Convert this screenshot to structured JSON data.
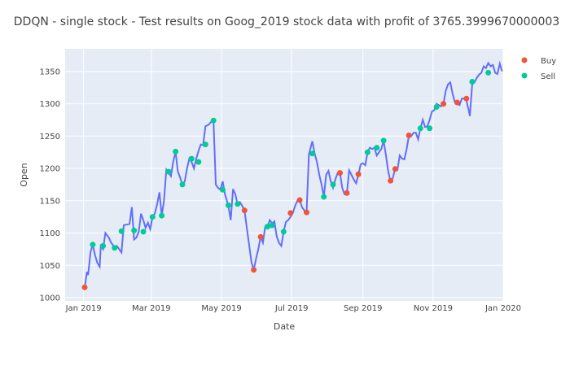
{
  "chart_data": {
    "type": "line",
    "title": "DDQN - single stock - Test results on Goog_2019 stock data with profit of 3765.3999670000003",
    "xlabel": "Date",
    "ylabel": "Open",
    "xlim": [
      "2018-12-16",
      "2020-01-01"
    ],
    "ylim": [
      995,
      1385
    ],
    "x_ticks": [
      {
        "date": "2019-01-01",
        "label": "Jan 2019"
      },
      {
        "date": "2019-03-01",
        "label": "Mar 2019"
      },
      {
        "date": "2019-05-01",
        "label": "May 2019"
      },
      {
        "date": "2019-07-01",
        "label": "Jul 2019"
      },
      {
        "date": "2019-09-01",
        "label": "Sep 2019"
      },
      {
        "date": "2019-11-01",
        "label": "Nov 2019"
      },
      {
        "date": "2020-01-01",
        "label": "Jan 2020"
      }
    ],
    "y_ticks": [
      1000,
      1050,
      1100,
      1150,
      1200,
      1250,
      1300,
      1350
    ],
    "grid": true,
    "legend_position": "top-right",
    "colors": {
      "line": "#636efa",
      "buy": "#ef553b",
      "sell": "#00cc96",
      "plot_bg": "#e5ecf6",
      "grid": "#ffffff"
    },
    "line_series": {
      "name": "",
      "points": [
        [
          "2019-01-02",
          1016
        ],
        [
          "2019-01-04",
          1040
        ],
        [
          "2019-01-05",
          1035
        ],
        [
          "2019-01-07",
          1070
        ],
        [
          "2019-01-09",
          1082
        ],
        [
          "2019-01-11",
          1066
        ],
        [
          "2019-01-13",
          1054
        ],
        [
          "2019-01-15",
          1048
        ],
        [
          "2019-01-16",
          1080
        ],
        [
          "2019-01-18",
          1075
        ],
        [
          "2019-01-20",
          1100
        ],
        [
          "2019-01-23",
          1093
        ],
        [
          "2019-01-25",
          1085
        ],
        [
          "2019-01-28",
          1078
        ],
        [
          "2019-01-30",
          1080
        ],
        [
          "2019-02-01",
          1075
        ],
        [
          "2019-02-03",
          1070
        ],
        [
          "2019-02-05",
          1112
        ],
        [
          "2019-02-07",
          1113
        ],
        [
          "2019-02-10",
          1114
        ],
        [
          "2019-02-12",
          1140
        ],
        [
          "2019-02-14",
          1090
        ],
        [
          "2019-02-16",
          1093
        ],
        [
          "2019-02-18",
          1102
        ],
        [
          "2019-02-20",
          1130
        ],
        [
          "2019-02-22",
          1120
        ],
        [
          "2019-02-24",
          1108
        ],
        [
          "2019-02-26",
          1116
        ],
        [
          "2019-02-28",
          1106
        ],
        [
          "2019-03-02",
          1125
        ],
        [
          "2019-03-04",
          1130
        ],
        [
          "2019-03-06",
          1145
        ],
        [
          "2019-03-08",
          1163
        ],
        [
          "2019-03-10",
          1127
        ],
        [
          "2019-03-12",
          1150
        ],
        [
          "2019-03-14",
          1198
        ],
        [
          "2019-03-16",
          1193
        ],
        [
          "2019-03-18",
          1188
        ],
        [
          "2019-03-20",
          1210
        ],
        [
          "2019-03-22",
          1226
        ],
        [
          "2019-03-24",
          1195
        ],
        [
          "2019-03-26",
          1186
        ],
        [
          "2019-03-28",
          1175
        ],
        [
          "2019-03-30",
          1180
        ],
        [
          "2019-04-01",
          1200
        ],
        [
          "2019-04-03",
          1215
        ],
        [
          "2019-04-05",
          1210
        ],
        [
          "2019-04-07",
          1200
        ],
        [
          "2019-04-09",
          1215
        ],
        [
          "2019-04-11",
          1227
        ],
        [
          "2019-04-13",
          1237
        ],
        [
          "2019-04-15",
          1236
        ],
        [
          "2019-04-17",
          1265
        ],
        [
          "2019-04-20",
          1268
        ],
        [
          "2019-04-22",
          1272
        ],
        [
          "2019-04-24",
          1274
        ],
        [
          "2019-04-26",
          1175
        ],
        [
          "2019-04-28",
          1170
        ],
        [
          "2019-04-30",
          1167
        ],
        [
          "2019-05-02",
          1180
        ],
        [
          "2019-05-04",
          1160
        ],
        [
          "2019-05-07",
          1142
        ],
        [
          "2019-05-09",
          1120
        ],
        [
          "2019-05-11",
          1168
        ],
        [
          "2019-05-13",
          1160
        ],
        [
          "2019-05-15",
          1144
        ],
        [
          "2019-05-17",
          1148
        ],
        [
          "2019-05-19",
          1142
        ],
        [
          "2019-05-21",
          1135
        ],
        [
          "2019-05-23",
          1108
        ],
        [
          "2019-05-25",
          1082
        ],
        [
          "2019-05-27",
          1055
        ],
        [
          "2019-05-29",
          1043
        ],
        [
          "2019-05-31",
          1060
        ],
        [
          "2019-06-02",
          1075
        ],
        [
          "2019-06-04",
          1094
        ],
        [
          "2019-06-06",
          1085
        ],
        [
          "2019-06-08",
          1110
        ],
        [
          "2019-06-10",
          1110
        ],
        [
          "2019-06-12",
          1120
        ],
        [
          "2019-06-14",
          1115
        ],
        [
          "2019-06-16",
          1118
        ],
        [
          "2019-06-18",
          1095
        ],
        [
          "2019-06-20",
          1085
        ],
        [
          "2019-06-22",
          1080
        ],
        [
          "2019-06-24",
          1102
        ],
        [
          "2019-06-26",
          1117
        ],
        [
          "2019-06-28",
          1120
        ],
        [
          "2019-06-30",
          1125
        ],
        [
          "2019-07-02",
          1131
        ],
        [
          "2019-07-04",
          1142
        ],
        [
          "2019-07-06",
          1150
        ],
        [
          "2019-07-08",
          1151
        ],
        [
          "2019-07-10",
          1140
        ],
        [
          "2019-07-12",
          1135
        ],
        [
          "2019-07-14",
          1132
        ],
        [
          "2019-07-16",
          1222
        ],
        [
          "2019-07-19",
          1242
        ],
        [
          "2019-07-21",
          1223
        ],
        [
          "2019-07-23",
          1210
        ],
        [
          "2019-07-25",
          1190
        ],
        [
          "2019-07-27",
          1175
        ],
        [
          "2019-07-29",
          1156
        ],
        [
          "2019-07-31",
          1190
        ],
        [
          "2019-08-02",
          1196
        ],
        [
          "2019-08-04",
          1180
        ],
        [
          "2019-08-06",
          1170
        ],
        [
          "2019-08-08",
          1183
        ],
        [
          "2019-08-10",
          1193
        ],
        [
          "2019-08-12",
          1193
        ],
        [
          "2019-08-14",
          1170
        ],
        [
          "2019-08-16",
          1160
        ],
        [
          "2019-08-18",
          1162
        ],
        [
          "2019-08-20",
          1197
        ],
        [
          "2019-08-22",
          1190
        ],
        [
          "2019-08-24",
          1183
        ],
        [
          "2019-08-26",
          1177
        ],
        [
          "2019-08-28",
          1190
        ],
        [
          "2019-08-30",
          1206
        ],
        [
          "2019-09-01",
          1208
        ],
        [
          "2019-09-03",
          1205
        ],
        [
          "2019-09-05",
          1225
        ],
        [
          "2019-09-07",
          1232
        ],
        [
          "2019-09-09",
          1230
        ],
        [
          "2019-09-11",
          1232
        ],
        [
          "2019-09-13",
          1220
        ],
        [
          "2019-09-15",
          1225
        ],
        [
          "2019-09-17",
          1230
        ],
        [
          "2019-09-19",
          1243
        ],
        [
          "2019-09-21",
          1220
        ],
        [
          "2019-09-23",
          1195
        ],
        [
          "2019-09-25",
          1180
        ],
        [
          "2019-09-27",
          1185
        ],
        [
          "2019-09-29",
          1200
        ],
        [
          "2019-10-01",
          1198
        ],
        [
          "2019-10-03",
          1220
        ],
        [
          "2019-10-05",
          1215
        ],
        [
          "2019-10-07",
          1214
        ],
        [
          "2019-10-09",
          1230
        ],
        [
          "2019-10-11",
          1251
        ],
        [
          "2019-10-13",
          1250
        ],
        [
          "2019-10-15",
          1255
        ],
        [
          "2019-10-17",
          1255
        ],
        [
          "2019-10-19",
          1245
        ],
        [
          "2019-10-21",
          1262
        ],
        [
          "2019-10-23",
          1275
        ],
        [
          "2019-10-25",
          1264
        ],
        [
          "2019-10-27",
          1265
        ],
        [
          "2019-10-29",
          1275
        ],
        [
          "2019-10-31",
          1288
        ],
        [
          "2019-11-02",
          1290
        ],
        [
          "2019-11-04",
          1300
        ],
        [
          "2019-11-06",
          1298
        ],
        [
          "2019-11-08",
          1296
        ],
        [
          "2019-11-10",
          1300
        ],
        [
          "2019-11-12",
          1320
        ],
        [
          "2019-11-14",
          1330
        ],
        [
          "2019-11-16",
          1333
        ],
        [
          "2019-11-18",
          1315
        ],
        [
          "2019-11-20",
          1302
        ],
        [
          "2019-11-22",
          1300
        ],
        [
          "2019-11-24",
          1298
        ],
        [
          "2019-11-26",
          1308
        ],
        [
          "2019-11-28",
          1308
        ],
        [
          "2019-11-30",
          1305
        ],
        [
          "2019-12-02",
          1290
        ],
        [
          "2019-12-03",
          1281
        ],
        [
          "2019-12-05",
          1330
        ],
        [
          "2019-12-07",
          1333
        ],
        [
          "2019-12-09",
          1340
        ],
        [
          "2019-12-11",
          1345
        ],
        [
          "2019-12-13",
          1348
        ],
        [
          "2019-12-15",
          1358
        ],
        [
          "2019-12-17",
          1355
        ],
        [
          "2019-12-19",
          1363
        ],
        [
          "2019-12-21",
          1358
        ],
        [
          "2019-12-23",
          1360
        ],
        [
          "2019-12-25",
          1348
        ],
        [
          "2019-12-27",
          1346
        ],
        [
          "2019-12-29",
          1362
        ],
        [
          "2019-12-31",
          1350
        ]
      ]
    },
    "buy_series": {
      "name": "Buy",
      "points": [
        [
          "2019-01-02",
          1016
        ],
        [
          "2019-05-21",
          1135
        ],
        [
          "2019-05-29",
          1043
        ],
        [
          "2019-06-04",
          1094
        ],
        [
          "2019-06-30",
          1131
        ],
        [
          "2019-07-08",
          1151
        ],
        [
          "2019-07-14",
          1132
        ],
        [
          "2019-08-12",
          1193
        ],
        [
          "2019-08-18",
          1162
        ],
        [
          "2019-08-28",
          1191
        ],
        [
          "2019-09-25",
          1181
        ],
        [
          "2019-09-29",
          1199
        ],
        [
          "2019-10-11",
          1251
        ],
        [
          "2019-11-10",
          1300
        ],
        [
          "2019-11-22",
          1302
        ],
        [
          "2019-11-30",
          1308
        ]
      ]
    },
    "sell_series": {
      "name": "Sell",
      "points": [
        [
          "2019-01-09",
          1082
        ],
        [
          "2019-01-18",
          1080
        ],
        [
          "2019-01-28",
          1077
        ],
        [
          "2019-02-03",
          1103
        ],
        [
          "2019-02-14",
          1104
        ],
        [
          "2019-02-22",
          1102
        ],
        [
          "2019-03-02",
          1125
        ],
        [
          "2019-03-10",
          1127
        ],
        [
          "2019-03-16",
          1195
        ],
        [
          "2019-03-22",
          1226
        ],
        [
          "2019-03-28",
          1175
        ],
        [
          "2019-04-05",
          1215
        ],
        [
          "2019-04-11",
          1210
        ],
        [
          "2019-04-17",
          1237
        ],
        [
          "2019-04-24",
          1274
        ],
        [
          "2019-05-02",
          1167
        ],
        [
          "2019-05-07",
          1143
        ],
        [
          "2019-05-15",
          1145
        ],
        [
          "2019-06-10",
          1110
        ],
        [
          "2019-06-14",
          1112
        ],
        [
          "2019-06-24",
          1102
        ],
        [
          "2019-07-19",
          1223
        ],
        [
          "2019-07-29",
          1156
        ],
        [
          "2019-08-06",
          1175
        ],
        [
          "2019-09-05",
          1225
        ],
        [
          "2019-09-13",
          1232
        ],
        [
          "2019-09-19",
          1243
        ],
        [
          "2019-10-21",
          1262
        ],
        [
          "2019-10-29",
          1262
        ],
        [
          "2019-11-04",
          1295
        ],
        [
          "2019-12-05",
          1334
        ],
        [
          "2019-12-19",
          1348
        ]
      ]
    }
  }
}
